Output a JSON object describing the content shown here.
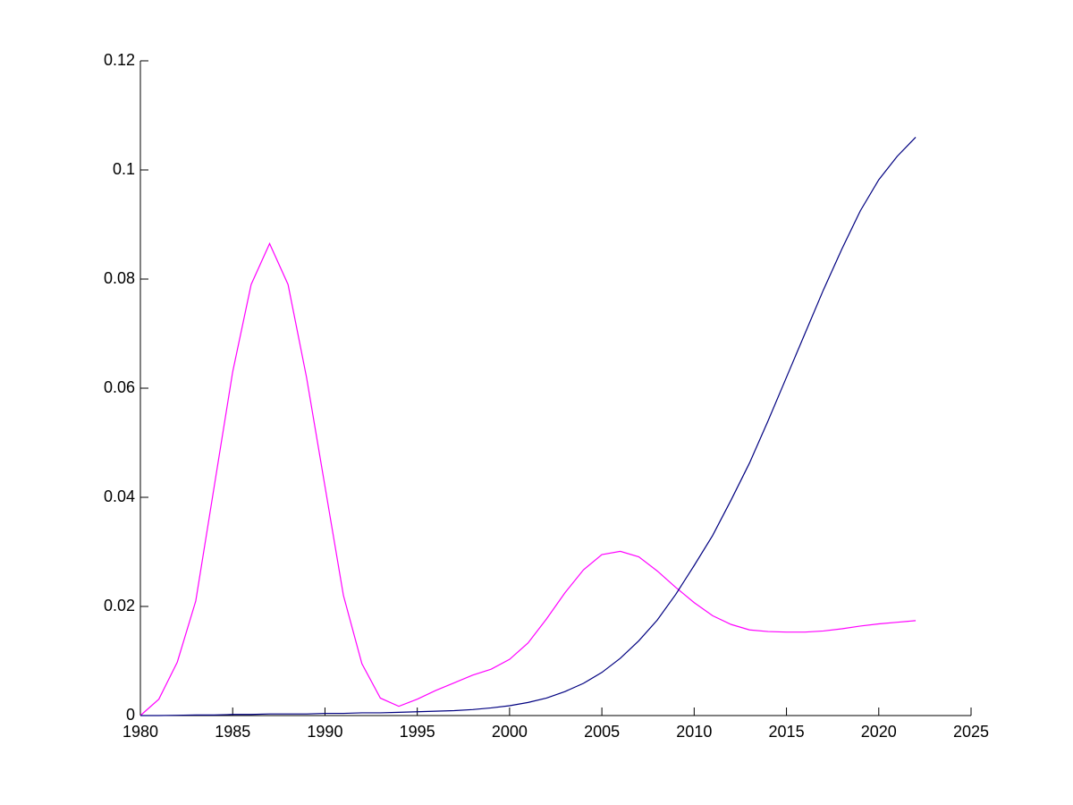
{
  "chart_data": {
    "type": "line",
    "x": [
      1980,
      1981,
      1982,
      1983,
      1984,
      1985,
      1986,
      1987,
      1988,
      1989,
      1990,
      1991,
      1992,
      1993,
      1994,
      1995,
      1996,
      1997,
      1998,
      1999,
      2000,
      2001,
      2002,
      2003,
      2004,
      2005,
      2006,
      2007,
      2008,
      2009,
      2010,
      2011,
      2012,
      2013,
      2014,
      2015,
      2016,
      2017,
      2018,
      2019,
      2020,
      2021,
      2022
    ],
    "series": [
      {
        "color": "#ff00ff",
        "values": [
          0,
          0.003,
          0.0098,
          0.021,
          0.042,
          0.063,
          0.079,
          0.0865,
          0.079,
          0.062,
          0.042,
          0.022,
          0.0095,
          0.0032,
          0.0017,
          0.003,
          0.0046,
          0.006,
          0.0074,
          0.0085,
          0.0103,
          0.0133,
          0.0177,
          0.0225,
          0.0267,
          0.0295,
          0.0301,
          0.0291,
          0.0265,
          0.0235,
          0.0207,
          0.0183,
          0.0167,
          0.0157,
          0.0154,
          0.0153,
          0.0153,
          0.0155,
          0.0159,
          0.0164,
          0.0168,
          0.0171,
          0.0174
        ]
      },
      {
        "color": "#000080",
        "values": [
          0,
          0,
          5e-05,
          0.0001,
          0.0001,
          0.0002,
          0.0002,
          0.0003,
          0.0003,
          0.0003,
          0.0004,
          0.0004,
          0.0005,
          0.0005,
          0.0006,
          0.0007,
          0.0008,
          0.0009,
          0.0011,
          0.0014,
          0.0018,
          0.0024,
          0.0032,
          0.0044,
          0.0059,
          0.0079,
          0.0105,
          0.0137,
          0.0175,
          0.0222,
          0.0275,
          0.033,
          0.0395,
          0.0463,
          0.054,
          0.062,
          0.07,
          0.078,
          0.0855,
          0.0925,
          0.0982,
          0.1025,
          0.106
        ]
      }
    ],
    "xlim": [
      1980,
      2025
    ],
    "xticks": [
      1980,
      1985,
      1990,
      1995,
      2000,
      2005,
      2010,
      2015,
      2020,
      2025
    ],
    "ylim": [
      0,
      0.12
    ],
    "yticks": [
      0,
      0.02,
      0.04,
      0.06,
      0.08,
      0.1,
      0.12
    ]
  }
}
